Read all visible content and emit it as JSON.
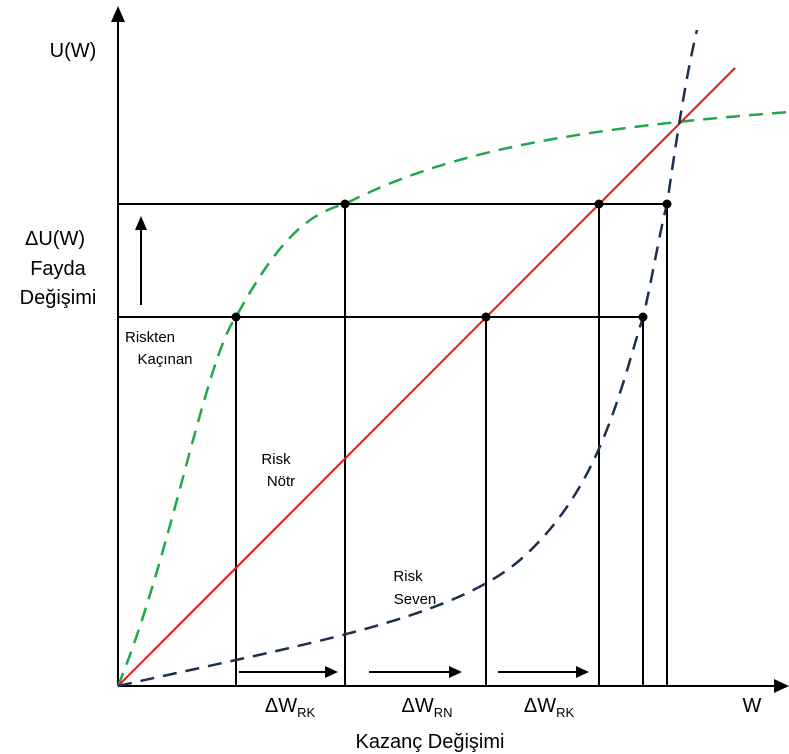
{
  "axes": {
    "y_label": "U(W)",
    "x_label": "W",
    "x_caption": "Kazanç Değişimi"
  },
  "delta_u": {
    "line1": "ΔU(W)",
    "line2": "Fayda",
    "line3": "Değişimi"
  },
  "curves": {
    "risk_averse": {
      "line1": "Riskten",
      "line2": "Kaçınan",
      "color": "#1fa84a"
    },
    "risk_neutral": {
      "line1": "Risk",
      "line2": "Nötr",
      "color": "#e8161a"
    },
    "risk_seeking": {
      "line1": "Risk",
      "line2": "Seven",
      "color": "#1c2f4f"
    }
  },
  "delta_w": [
    {
      "base": "ΔW",
      "sub": "RK"
    },
    {
      "base": "ΔW",
      "sub": "RN"
    },
    {
      "base": "ΔW",
      "sub": "RK"
    }
  ]
}
